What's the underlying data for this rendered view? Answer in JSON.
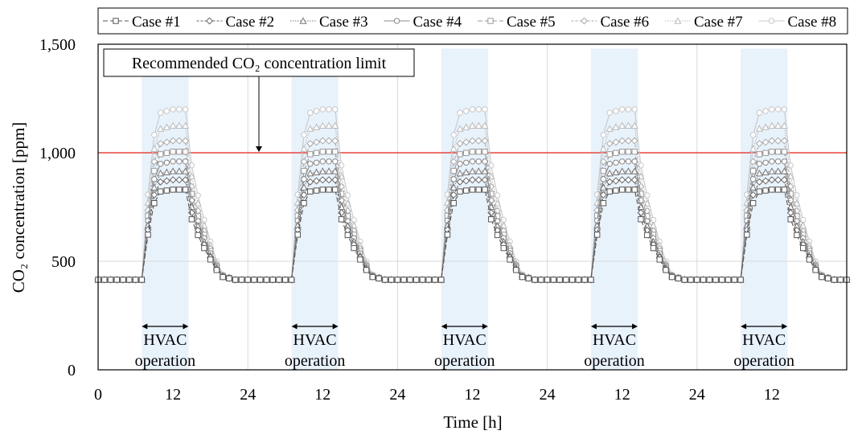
{
  "chart_data": {
    "type": "line",
    "xlabel": "Time [h]",
    "ylabel": "CO₂ concentration [ppm]",
    "ylim": [
      0,
      1500
    ],
    "xlim": [
      0,
      120
    ],
    "y_ticks": [
      "0",
      "500",
      "1,000",
      "1,500"
    ],
    "y_tick_values": [
      0,
      500,
      1000,
      1500
    ],
    "x_ticks": [
      "0",
      "12",
      "24",
      "12",
      "24",
      "12",
      "24",
      "12",
      "24",
      "12"
    ],
    "x_tick_values": [
      0,
      12,
      24,
      36,
      48,
      60,
      72,
      84,
      96,
      108
    ],
    "grid": true,
    "legend_position": "top",
    "limit_line": {
      "label": "Recommended CO₂ concentration limit",
      "value": 1000,
      "color": "#e8453c"
    },
    "hvac_periods": [
      [
        7,
        14.5
      ],
      [
        31,
        38.5
      ],
      [
        55,
        62.5
      ],
      [
        79,
        86.5
      ],
      [
        103,
        110.5
      ]
    ],
    "hvac_label_line1": "HVAC",
    "hvac_label_line2": "operation",
    "hvac_color": "#e8f2fb",
    "baseline": 415,
    "series": [
      {
        "name": "Case #1",
        "peak": 830,
        "marker": "square",
        "color": "#555555",
        "dash": "6,3"
      },
      {
        "name": "Case #2",
        "peak": 875,
        "marker": "diamond",
        "color": "#666666",
        "dash": "3,2"
      },
      {
        "name": "Case #3",
        "peak": 915,
        "marker": "triangle",
        "color": "#777777",
        "dash": "1.5,1.5"
      },
      {
        "name": "Case #4",
        "peak": 960,
        "marker": "circle",
        "color": "#888888",
        "dash": ""
      },
      {
        "name": "Case #5",
        "peak": 1005,
        "marker": "square",
        "color": "#999999",
        "dash": "6,3"
      },
      {
        "name": "Case #6",
        "peak": 1055,
        "marker": "diamond",
        "color": "#aaaaaa",
        "dash": "3,2"
      },
      {
        "name": "Case #7",
        "peak": 1125,
        "marker": "triangle",
        "color": "#bbbbbb",
        "dash": "1.5,1.5"
      },
      {
        "name": "Case #8",
        "peak": 1200,
        "marker": "circle",
        "color": "#c8c8c8",
        "dash": ""
      }
    ]
  }
}
